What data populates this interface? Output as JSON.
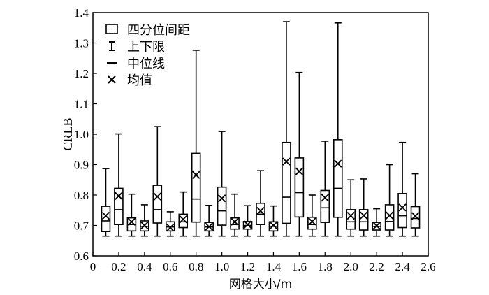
{
  "chart_data": {
    "type": "box",
    "xlabel": "网格大小/m",
    "ylabel": "CRLB",
    "xlim": [
      0,
      2.6
    ],
    "ylim": [
      0.6,
      1.4
    ],
    "x_ticks": [
      "0",
      "0.2",
      "0.4",
      "0.6",
      "0.8",
      "1.0",
      "1.2",
      "1.4",
      "1.6",
      "1.8",
      "2.0",
      "2.2",
      "2.4",
      "2.6"
    ],
    "y_ticks": [
      "0.6",
      "0.7",
      "0.8",
      "0.9",
      "1.0",
      "1.1",
      "1.2",
      "1.3",
      "1.4"
    ],
    "legend": {
      "position": "top-left",
      "items": [
        {
          "symbol": "box",
          "label": "四分位间距"
        },
        {
          "symbol": "range",
          "label": "上下限"
        },
        {
          "symbol": "line",
          "label": "中位线"
        },
        {
          "symbol": "x",
          "label": "均值"
        }
      ]
    },
    "boxes": [
      {
        "x": 0.1,
        "min": 0.665,
        "q1": 0.68,
        "median": 0.715,
        "q3": 0.763,
        "max": 0.887,
        "mean": 0.732
      },
      {
        "x": 0.2,
        "min": 0.665,
        "q1": 0.703,
        "median": 0.752,
        "q3": 0.822,
        "max": 1.001,
        "mean": 0.797
      },
      {
        "x": 0.3,
        "min": 0.665,
        "q1": 0.682,
        "median": 0.703,
        "q3": 0.725,
        "max": 0.803,
        "mean": 0.712
      },
      {
        "x": 0.4,
        "min": 0.665,
        "q1": 0.682,
        "median": 0.697,
        "q3": 0.715,
        "max": 0.768,
        "mean": 0.7
      },
      {
        "x": 0.5,
        "min": 0.665,
        "q1": 0.708,
        "median": 0.752,
        "q3": 0.832,
        "max": 1.025,
        "mean": 0.795
      },
      {
        "x": 0.6,
        "min": 0.665,
        "q1": 0.682,
        "median": 0.695,
        "q3": 0.712,
        "max": 0.745,
        "mean": 0.693
      },
      {
        "x": 0.7,
        "min": 0.665,
        "q1": 0.693,
        "median": 0.712,
        "q3": 0.737,
        "max": 0.81,
        "mean": 0.72
      },
      {
        "x": 0.8,
        "min": 0.665,
        "q1": 0.711,
        "median": 0.787,
        "q3": 0.937,
        "max": 1.276,
        "mean": 0.866
      },
      {
        "x": 0.9,
        "min": 0.665,
        "q1": 0.682,
        "median": 0.695,
        "q3": 0.71,
        "max": 0.766,
        "mean": 0.696
      },
      {
        "x": 1.0,
        "min": 0.665,
        "q1": 0.701,
        "median": 0.748,
        "q3": 0.826,
        "max": 1.009,
        "mean": 0.789
      },
      {
        "x": 1.1,
        "min": 0.665,
        "q1": 0.688,
        "median": 0.703,
        "q3": 0.725,
        "max": 0.803,
        "mean": 0.712
      },
      {
        "x": 1.2,
        "min": 0.665,
        "q1": 0.688,
        "median": 0.7,
        "q3": 0.713,
        "max": 0.765,
        "mean": 0.703
      },
      {
        "x": 1.3,
        "min": 0.665,
        "q1": 0.703,
        "median": 0.737,
        "q3": 0.773,
        "max": 0.88,
        "mean": 0.748
      },
      {
        "x": 1.4,
        "min": 0.665,
        "q1": 0.682,
        "median": 0.697,
        "q3": 0.712,
        "max": 0.764,
        "mean": 0.7
      },
      {
        "x": 1.5,
        "min": 0.665,
        "q1": 0.707,
        "median": 0.793,
        "q3": 0.973,
        "max": 1.37,
        "mean": 0.91
      },
      {
        "x": 1.6,
        "min": 0.665,
        "q1": 0.728,
        "median": 0.808,
        "q3": 0.922,
        "max": 1.203,
        "mean": 0.878
      },
      {
        "x": 1.7,
        "min": 0.665,
        "q1": 0.688,
        "median": 0.703,
        "q3": 0.727,
        "max": 0.8,
        "mean": 0.713
      },
      {
        "x": 1.8,
        "min": 0.665,
        "q1": 0.71,
        "median": 0.758,
        "q3": 0.815,
        "max": 0.977,
        "mean": 0.791
      },
      {
        "x": 1.9,
        "min": 0.665,
        "q1": 0.727,
        "median": 0.822,
        "q3": 0.982,
        "max": 1.366,
        "mean": 0.903
      },
      {
        "x": 2.0,
        "min": 0.665,
        "q1": 0.688,
        "median": 0.712,
        "q3": 0.752,
        "max": 0.85,
        "mean": 0.732
      },
      {
        "x": 2.1,
        "min": 0.665,
        "q1": 0.685,
        "median": 0.712,
        "q3": 0.752,
        "max": 0.853,
        "mean": 0.733
      },
      {
        "x": 2.2,
        "min": 0.665,
        "q1": 0.685,
        "median": 0.697,
        "q3": 0.71,
        "max": 0.755,
        "mean": 0.699
      },
      {
        "x": 2.3,
        "min": 0.665,
        "q1": 0.685,
        "median": 0.713,
        "q3": 0.768,
        "max": 0.9,
        "mean": 0.733
      },
      {
        "x": 2.4,
        "min": 0.665,
        "q1": 0.693,
        "median": 0.732,
        "q3": 0.805,
        "max": 0.973,
        "mean": 0.759
      },
      {
        "x": 2.5,
        "min": 0.665,
        "q1": 0.692,
        "median": 0.723,
        "q3": 0.762,
        "max": 0.87,
        "mean": 0.731
      }
    ]
  }
}
